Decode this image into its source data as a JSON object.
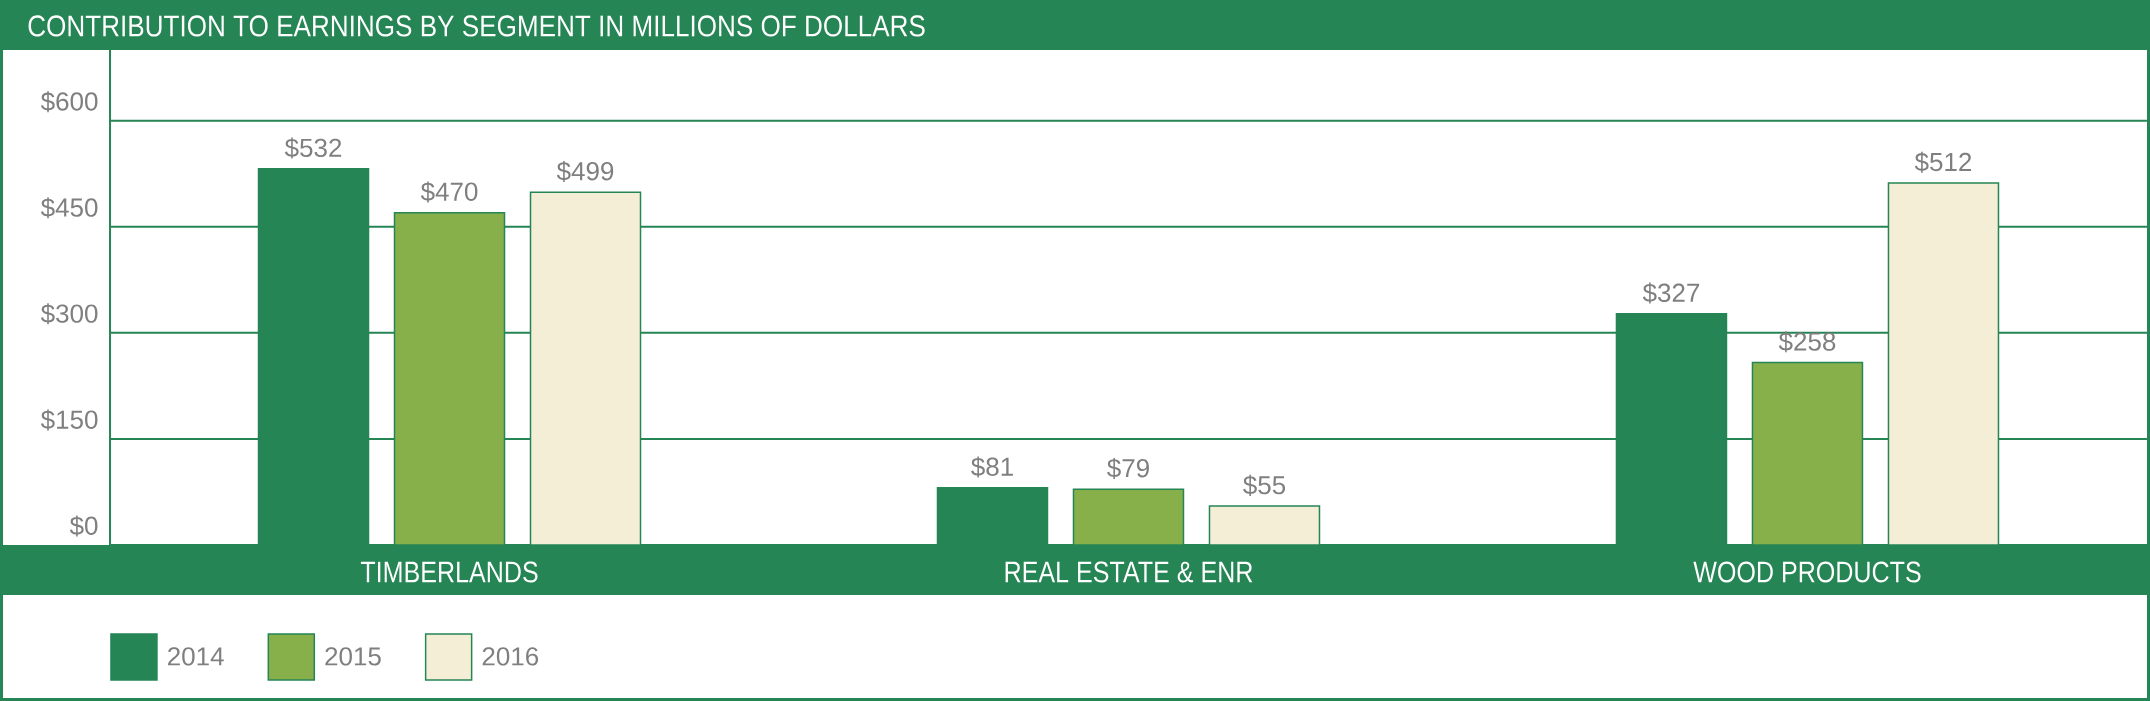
{
  "chart_data": {
    "type": "bar",
    "title": "CONTRIBUTION TO EARNINGS BY SEGMENT IN MILLIONS OF DOLLARS",
    "categories": [
      "TIMBERLANDS",
      "REAL ESTATE & ENR",
      "WOOD PRODUCTS"
    ],
    "series": [
      {
        "name": "2014",
        "color": "#268555",
        "values": [
          532,
          81,
          327
        ],
        "value_labels": [
          "$532",
          "$81",
          "$327"
        ]
      },
      {
        "name": "2015",
        "color": "#87b04b",
        "values": [
          470,
          79,
          258
        ],
        "value_labels": [
          "$470",
          "$79",
          "$258"
        ]
      },
      {
        "name": "2016",
        "color": "#f4eed6",
        "values": [
          499,
          55,
          512
        ],
        "value_labels": [
          "$499",
          "$55",
          "$512"
        ]
      }
    ],
    "ylim": [
      0,
      700
    ],
    "yticks": [
      {
        "value": 0,
        "label": "$0"
      },
      {
        "value": 150,
        "label": "$150"
      },
      {
        "value": 300,
        "label": "$300"
      },
      {
        "value": 450,
        "label": "$450"
      },
      {
        "value": 600,
        "label": "$600"
      }
    ],
    "grid": "y",
    "legend": "bottom left"
  }
}
